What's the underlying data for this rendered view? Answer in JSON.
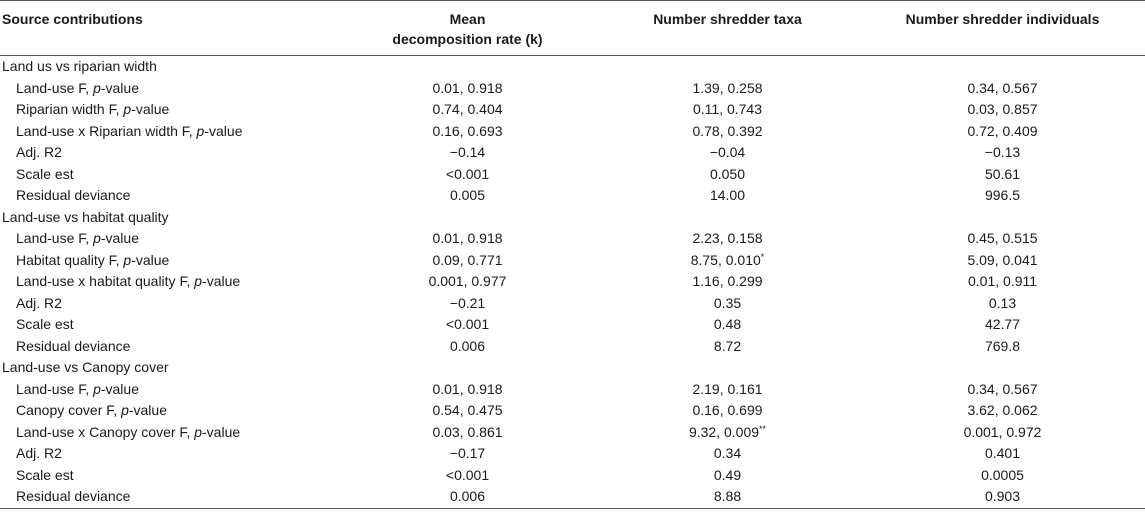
{
  "header": {
    "col0": "Source contributions",
    "col1_line1": "Mean",
    "col1_line2": "decomposition rate (k)",
    "col2": "Number shredder taxa",
    "col3": "Number shredder individuals"
  },
  "sections": [
    {
      "title": "Land us vs riparian width",
      "rows": [
        {
          "label": "Land-use F, ",
          "label_italic": "p",
          "label_suffix": "-value",
          "k": "0.01, 0.918",
          "taxa": "1.39, 0.258",
          "taxa_sup": "",
          "individuals": "0.34, 0.567"
        },
        {
          "label": "Riparian width F, ",
          "label_italic": "p",
          "label_suffix": "-value",
          "k": "0.74, 0.404",
          "taxa": "0.11, 0.743",
          "taxa_sup": "",
          "individuals": "0.03, 0.857"
        },
        {
          "label": "Land-use x Riparian width F, ",
          "label_italic": "p",
          "label_suffix": "-value",
          "k": "0.16, 0.693",
          "taxa": "0.78, 0.392",
          "taxa_sup": "",
          "individuals": "0.72, 0.409"
        },
        {
          "label": "Adj. R2",
          "label_italic": "",
          "label_suffix": "",
          "k": "−0.14",
          "taxa": "−0.04",
          "taxa_sup": "",
          "individuals": "−0.13"
        },
        {
          "label": "Scale est",
          "label_italic": "",
          "label_suffix": "",
          "k": "<0.001",
          "taxa": "0.050",
          "taxa_sup": "",
          "individuals": "50.61"
        },
        {
          "label": "Residual deviance",
          "label_italic": "",
          "label_suffix": "",
          "k": "0.005",
          "taxa": "14.00",
          "taxa_sup": "",
          "individuals": "996.5"
        }
      ]
    },
    {
      "title": "Land-use vs habitat quality",
      "rows": [
        {
          "label": "Land-use F, ",
          "label_italic": "p",
          "label_suffix": "-value",
          "k": "0.01, 0.918",
          "taxa": "2.23, 0.158",
          "taxa_sup": "",
          "individuals": "0.45, 0.515"
        },
        {
          "label": "Habitat quality F, ",
          "label_italic": "p",
          "label_suffix": "-value",
          "k": "0.09, 0.771",
          "taxa": "8.75, 0.010",
          "taxa_sup": "*",
          "individuals": "5.09, 0.041"
        },
        {
          "label": "Land-use x habitat quality F, ",
          "label_italic": "p",
          "label_suffix": "-value",
          "k": "0.001, 0.977",
          "taxa": "1.16, 0.299",
          "taxa_sup": "",
          "individuals": "0.01, 0.911"
        },
        {
          "label": "Adj. R2",
          "label_italic": "",
          "label_suffix": "",
          "k": "−0.21",
          "taxa": "0.35",
          "taxa_sup": "",
          "individuals": "0.13"
        },
        {
          "label": "Scale est",
          "label_italic": "",
          "label_suffix": "",
          "k": "<0.001",
          "taxa": "0.48",
          "taxa_sup": "",
          "individuals": "42.77"
        },
        {
          "label": "Residual deviance",
          "label_italic": "",
          "label_suffix": "",
          "k": "0.006",
          "taxa": "8.72",
          "taxa_sup": "",
          "individuals": "769.8"
        }
      ]
    },
    {
      "title": "Land-use vs Canopy cover",
      "rows": [
        {
          "label": "Land-use F, ",
          "label_italic": "p",
          "label_suffix": "-value",
          "k": "0.01, 0.918",
          "taxa": "2.19, 0.161",
          "taxa_sup": "",
          "individuals": "0.34, 0.567"
        },
        {
          "label": "Canopy cover F, ",
          "label_italic": "p",
          "label_suffix": "-value",
          "k": "0.54, 0.475",
          "taxa": "0.16, 0.699",
          "taxa_sup": "",
          "individuals": "3.62, 0.062"
        },
        {
          "label": "Land-use x Canopy cover F, ",
          "label_italic": "p",
          "label_suffix": "-value",
          "k": "0.03, 0.861",
          "taxa": "9.32, 0.009",
          "taxa_sup": "**",
          "individuals": "0.001, 0.972"
        },
        {
          "label": "Adj. R2",
          "label_italic": "",
          "label_suffix": "",
          "k": "−0.17",
          "taxa": "0.34",
          "taxa_sup": "",
          "individuals": "0.401"
        },
        {
          "label": "Scale est",
          "label_italic": "",
          "label_suffix": "",
          "k": "<0.001",
          "taxa": "0.49",
          "taxa_sup": "",
          "individuals": "0.0005"
        },
        {
          "label": "Residual deviance",
          "label_italic": "",
          "label_suffix": "",
          "k": "0.006",
          "taxa": "8.88",
          "taxa_sup": "",
          "individuals": "0.903"
        }
      ]
    }
  ]
}
